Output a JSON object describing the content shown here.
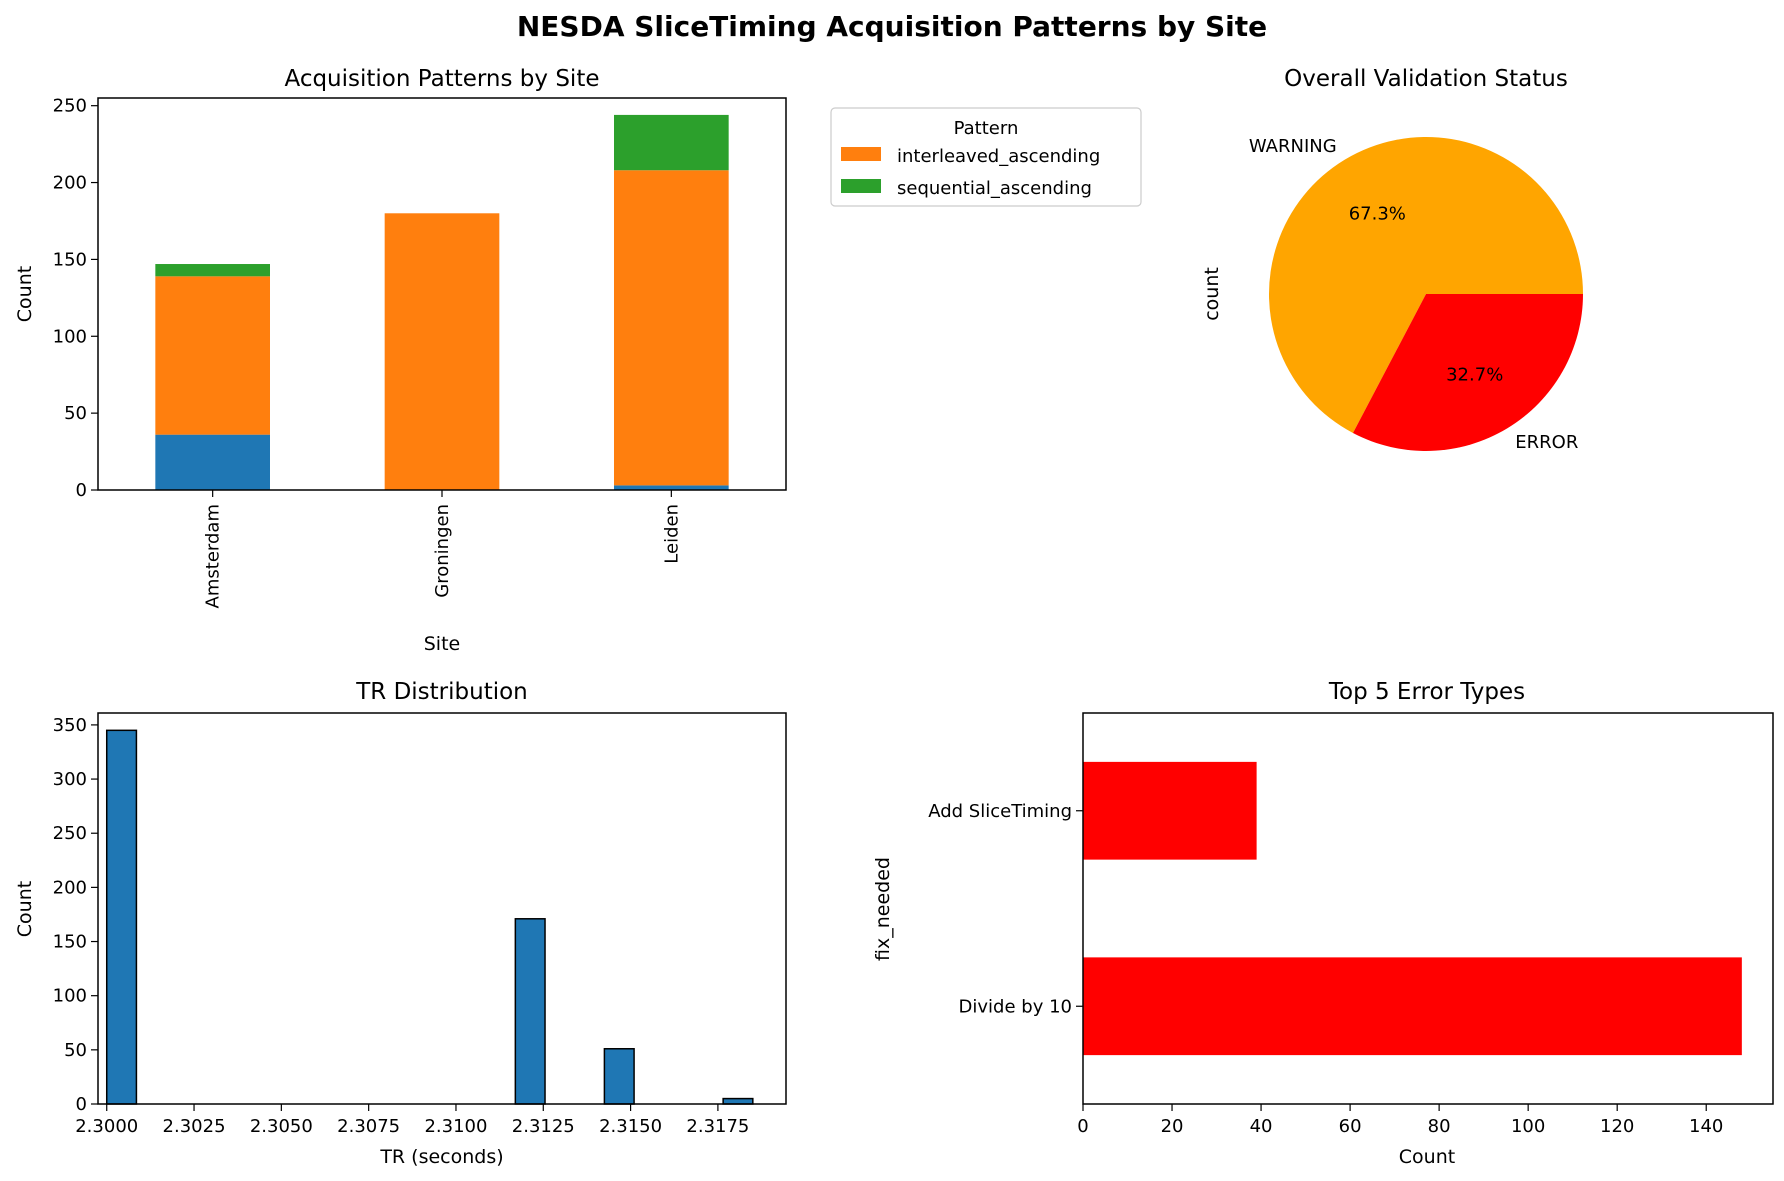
{
  "figure": {
    "title": "NESDA SliceTiming Acquisition Patterns by Site"
  },
  "chart_data": [
    {
      "type": "bar",
      "stacked": true,
      "title": "Acquisition Patterns by Site",
      "xlabel": "Site",
      "ylabel": "Count",
      "categories": [
        "Amsterdam",
        "Groningen",
        "Leiden"
      ],
      "ylim": [
        0,
        255
      ],
      "yticks": [
        0,
        50,
        100,
        150,
        200,
        250
      ],
      "series": [
        {
          "color": "#1f77b4",
          "values": [
            36,
            0,
            3
          ]
        },
        {
          "name": "interleaved_ascending",
          "color": "#ff7f0e",
          "values": [
            103,
            180,
            205
          ]
        },
        {
          "name": "sequential_ascending",
          "color": "#2ca02c",
          "values": [
            8,
            0,
            36
          ]
        }
      ],
      "legend": {
        "title": "Pattern",
        "placement": "outside upper right"
      }
    },
    {
      "type": "pie",
      "title": "Overall Validation Status",
      "ylabel": "count",
      "slices": [
        {
          "label": "WARNING",
          "value": 67.3,
          "pct_label": "67.3%",
          "color": "#ffa500"
        },
        {
          "label": "ERROR",
          "value": 32.7,
          "pct_label": "32.7%",
          "color": "#ff0000"
        }
      ]
    },
    {
      "type": "bar",
      "subtype": "histogram",
      "title": "TR Distribution",
      "xlabel": "TR (seconds)",
      "ylabel": "Count",
      "bar_color": "#1f77b4",
      "xlim": [
        2.29975,
        2.31945
      ],
      "ylim": [
        0,
        361
      ],
      "xticks": [
        "2.3000",
        "2.3025",
        "2.3050",
        "2.3075",
        "2.3100",
        "2.3125",
        "2.3150",
        "2.3175"
      ],
      "yticks": [
        0,
        50,
        100,
        150,
        200,
        250,
        300,
        350
      ],
      "bins": [
        {
          "x0": 2.3,
          "x1": 2.30085,
          "count": 345
        },
        {
          "x0": 2.3117,
          "x1": 2.31255,
          "count": 171
        },
        {
          "x0": 2.31425,
          "x1": 2.3151,
          "count": 51
        },
        {
          "x0": 2.31765,
          "x1": 2.3185,
          "count": 5
        }
      ]
    },
    {
      "type": "bar",
      "orientation": "horizontal",
      "title": "Top 5 Error Types",
      "xlabel": "Count",
      "ylabel": "fix_needed",
      "bar_color": "#ff0000",
      "categories": [
        "Divide by 10",
        "Add SliceTiming"
      ],
      "values": [
        148,
        39
      ],
      "xlim": [
        0,
        155
      ],
      "xticks": [
        0,
        20,
        40,
        60,
        80,
        100,
        120,
        140
      ]
    }
  ]
}
